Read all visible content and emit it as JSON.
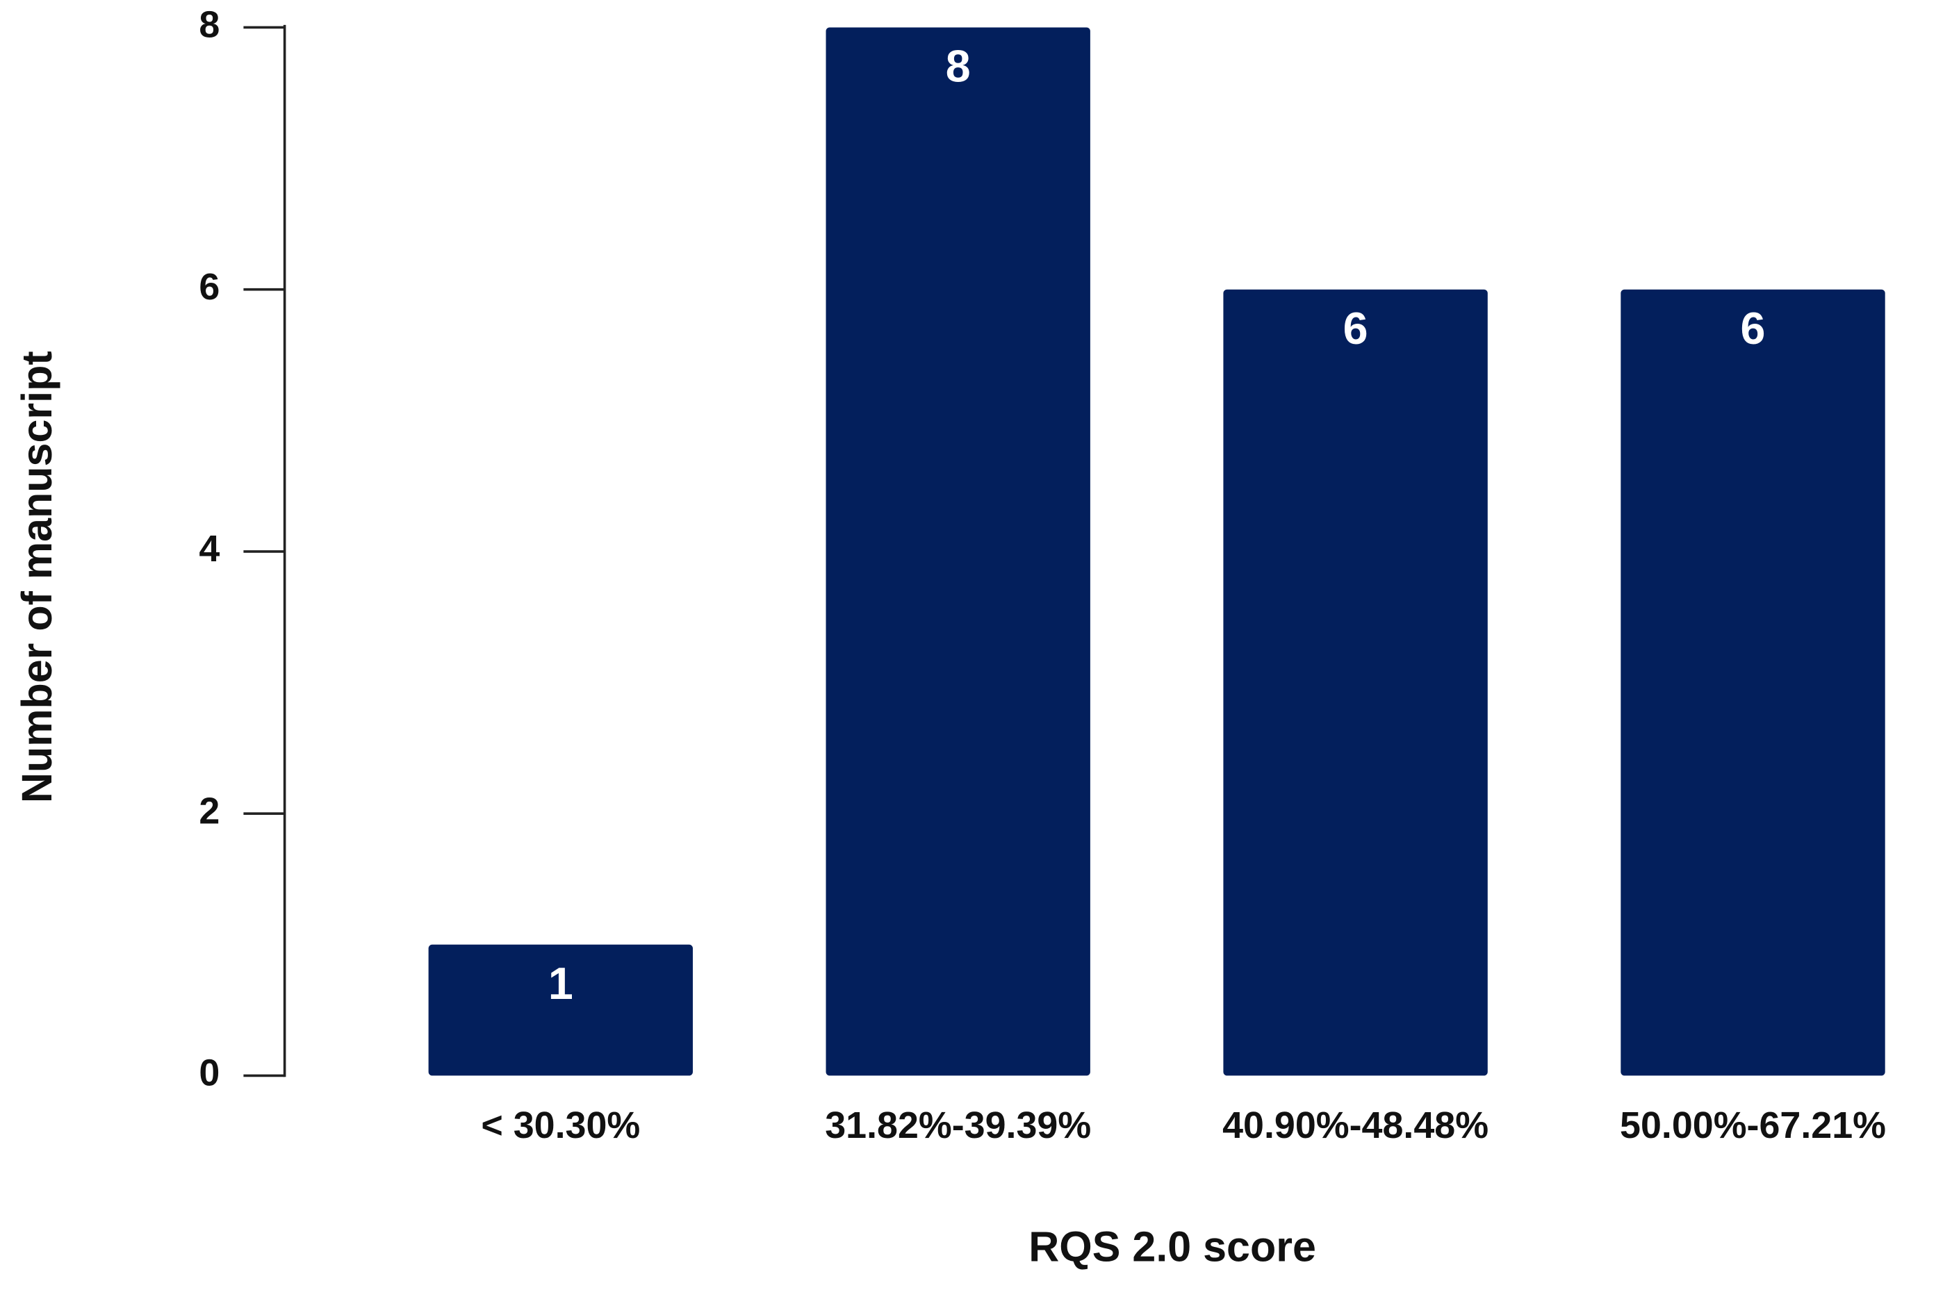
{
  "chart_data": {
    "type": "bar",
    "x_label": "RQS 2.0 score",
    "y_label": "Number of manuscript",
    "categories": [
      "< 30.30%",
      "31.82%-39.39%",
      "40.90%-48.48%",
      "50.00%-67.21%"
    ],
    "values": [
      1,
      8,
      6,
      6
    ],
    "color": "#031f5c",
    "ylim": [
      0,
      8
    ],
    "yticks": [
      0,
      2,
      4,
      6,
      8
    ],
    "grid": false
  }
}
